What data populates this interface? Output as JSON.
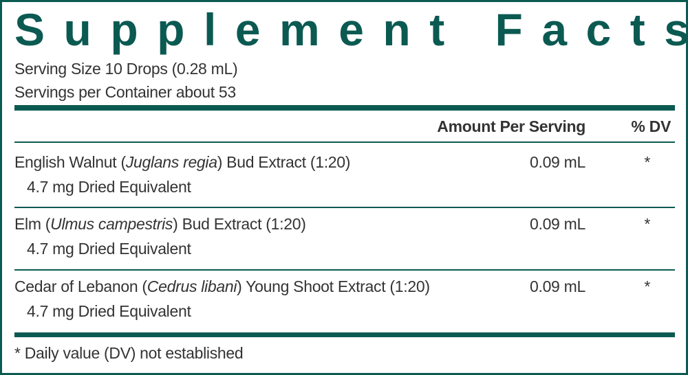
{
  "title": "Supplement Facts",
  "serving_size": "Serving Size 10 Drops (0.28 mL)",
  "servings_per_container": "Servings per Container about 53",
  "header": {
    "amount": "Amount Per Serving",
    "dv": "% DV"
  },
  "rows": [
    {
      "name": "English Walnut (",
      "latin": "Juglans regia",
      "name_end": ") Bud Extract (1:20)",
      "amount": "0.09 mL",
      "dv": "*",
      "sub": "4.7 mg Dried Equivalent"
    },
    {
      "name": "Elm (",
      "latin": "Ulmus campestris",
      "name_end": ") Bud Extract (1:20)",
      "amount": "0.09 mL",
      "dv": "*",
      "sub": "4.7 mg Dried Equivalent"
    },
    {
      "name": "Cedar of Lebanon (",
      "latin": "Cedrus libani",
      "name_end": ") Young Shoot Extract (1:20)",
      "amount": "0.09 mL",
      "dv": "*",
      "sub": "4.7 mg Dried Equivalent"
    }
  ],
  "footnote": "* Daily value (DV) not established"
}
